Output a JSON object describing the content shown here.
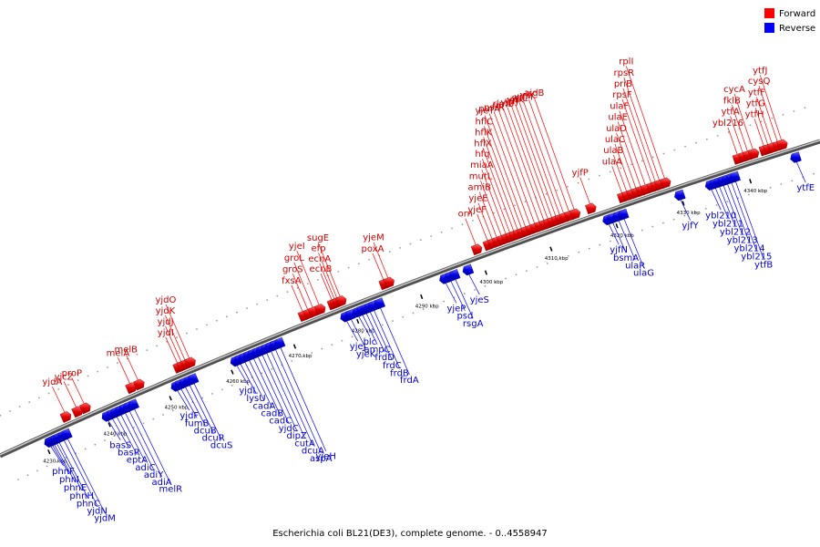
{
  "caption": "Escherichia coli BL21(DE3), complete genome. - 0..4558947",
  "legend": {
    "forward": "Forward",
    "reverse": "Reverse"
  },
  "colors": {
    "forward": "#ff0000",
    "reverse": "#0000ff",
    "backbone": "#808080",
    "forward_label": "#cc0000",
    "reverse_label": "#0000cc"
  },
  "ruler": [
    {
      "label": "4230 kbp",
      "pos": 4230
    },
    {
      "label": "4240 kbp",
      "pos": 4240
    },
    {
      "label": "4250 kbp",
      "pos": 4250
    },
    {
      "label": "4260 kbp",
      "pos": 4260
    },
    {
      "label": "4270 kbp",
      "pos": 4270
    },
    {
      "label": "4280 kbp",
      "pos": 4280
    },
    {
      "label": "4290 kbp",
      "pos": 4290
    },
    {
      "label": "4300 kbp",
      "pos": 4300
    },
    {
      "label": "4310 kbp",
      "pos": 4310
    },
    {
      "label": "4320 kbp",
      "pos": 4320
    },
    {
      "label": "4330 kbp",
      "pos": 4330
    },
    {
      "label": "4340 kbp",
      "pos": 4340
    }
  ],
  "genes": [
    {
      "name": "yjdA",
      "strand": "forward",
      "pos": 4234.6
    },
    {
      "name": "yjcZ",
      "strand": "forward",
      "pos": 4236.5
    },
    {
      "name": "proP",
      "strand": "forward",
      "pos": 4237.8
    },
    {
      "name": "melA",
      "strand": "forward",
      "pos": 4245.3
    },
    {
      "name": "melB",
      "strand": "forward",
      "pos": 4246.6
    },
    {
      "name": "yjdI",
      "strand": "forward",
      "pos": 4253.0
    },
    {
      "name": "yjdJ",
      "strand": "forward",
      "pos": 4253.6
    },
    {
      "name": "yjdK",
      "strand": "forward",
      "pos": 4254.2
    },
    {
      "name": "yjdO",
      "strand": "forward",
      "pos": 4254.9
    },
    {
      "name": "fxsA",
      "strand": "forward",
      "pos": 4273.0
    },
    {
      "name": "groS",
      "strand": "forward",
      "pos": 4273.8
    },
    {
      "name": "groL",
      "strand": "forward",
      "pos": 4274.6
    },
    {
      "name": "yjeI",
      "strand": "forward",
      "pos": 4275.6
    },
    {
      "name": "ecnB",
      "strand": "forward",
      "pos": 4277.6
    },
    {
      "name": "ecnA",
      "strand": "forward",
      "pos": 4278.0
    },
    {
      "name": "efp",
      "strand": "forward",
      "pos": 4278.4
    },
    {
      "name": "sugE",
      "strand": "forward",
      "pos": 4278.9
    },
    {
      "name": "poxA",
      "strand": "forward",
      "pos": 4285.7
    },
    {
      "name": "yjeM",
      "strand": "forward",
      "pos": 4286.4
    },
    {
      "name": "orn",
      "strand": "forward",
      "pos": 4300.0
    },
    {
      "name": "yjeF",
      "strand": "forward",
      "pos": 4301.8
    },
    {
      "name": "yjeE",
      "strand": "forward",
      "pos": 4302.5
    },
    {
      "name": "amiB",
      "strand": "forward",
      "pos": 4303.2
    },
    {
      "name": "mutL",
      "strand": "forward",
      "pos": 4303.9
    },
    {
      "name": "miaA",
      "strand": "forward",
      "pos": 4304.6
    },
    {
      "name": "hfq",
      "strand": "forward",
      "pos": 4305.2
    },
    {
      "name": "hflX",
      "strand": "forward",
      "pos": 4305.8
    },
    {
      "name": "hflK",
      "strand": "forward",
      "pos": 4306.4
    },
    {
      "name": "hflC",
      "strand": "forward",
      "pos": 4307.0
    },
    {
      "name": "yjeT",
      "strand": "forward",
      "pos": 4307.6
    },
    {
      "name": "purA",
      "strand": "forward",
      "pos": 4308.3
    },
    {
      "name": "nsrR",
      "strand": "forward",
      "pos": 4309.0
    },
    {
      "name": "rnr",
      "strand": "forward",
      "pos": 4309.7
    },
    {
      "name": "rlmB",
      "strand": "forward",
      "pos": 4310.4
    },
    {
      "name": "yjfI",
      "strand": "forward",
      "pos": 4311.0
    },
    {
      "name": "yjfJ",
      "strand": "forward",
      "pos": 4311.6
    },
    {
      "name": "yjfK",
      "strand": "forward",
      "pos": 4312.2
    },
    {
      "name": "yjfL",
      "strand": "forward",
      "pos": 4312.8
    },
    {
      "name": "yjfM",
      "strand": "forward",
      "pos": 4313.4
    },
    {
      "name": "yjfC",
      "strand": "forward",
      "pos": 4314.2
    },
    {
      "name": "aidB",
      "strand": "forward",
      "pos": 4315.0
    },
    {
      "name": "yjfP",
      "strand": "forward",
      "pos": 4317.4
    },
    {
      "name": "ulaA",
      "strand": "forward",
      "pos": 4322.2
    },
    {
      "name": "ulaB",
      "strand": "forward",
      "pos": 4322.9
    },
    {
      "name": "ulaC",
      "strand": "forward",
      "pos": 4323.6
    },
    {
      "name": "ulaD",
      "strand": "forward",
      "pos": 4324.3
    },
    {
      "name": "ulaE",
      "strand": "forward",
      "pos": 4325.0
    },
    {
      "name": "ulaF",
      "strand": "forward",
      "pos": 4325.7
    },
    {
      "name": "rpsF",
      "strand": "forward",
      "pos": 4326.6
    },
    {
      "name": "priB",
      "strand": "forward",
      "pos": 4327.2
    },
    {
      "name": "rpsR",
      "strand": "forward",
      "pos": 4327.8
    },
    {
      "name": "rplI",
      "strand": "forward",
      "pos": 4328.6
    },
    {
      "name": "ybl216",
      "strand": "forward",
      "pos": 4339.4
    },
    {
      "name": "ytfA",
      "strand": "forward",
      "pos": 4340.2
    },
    {
      "name": "fklB",
      "strand": "forward",
      "pos": 4340.9
    },
    {
      "name": "cycA",
      "strand": "forward",
      "pos": 4341.7
    },
    {
      "name": "ytfH",
      "strand": "forward",
      "pos": 4343.3
    },
    {
      "name": "ytfG",
      "strand": "forward",
      "pos": 4343.9
    },
    {
      "name": "ytfF",
      "strand": "forward",
      "pos": 4344.5
    },
    {
      "name": "cysQ",
      "strand": "forward",
      "pos": 4345.3
    },
    {
      "name": "ytfJ",
      "strand": "forward",
      "pos": 4345.9
    },
    {
      "name": "phnF",
      "strand": "reverse",
      "pos": 4230.6
    },
    {
      "name": "phnI",
      "strand": "reverse",
      "pos": 4230.9
    },
    {
      "name": "phnE",
      "strand": "reverse",
      "pos": 4231.2
    },
    {
      "name": "phnH",
      "strand": "reverse",
      "pos": 4231.6
    },
    {
      "name": "phnC",
      "strand": "reverse",
      "pos": 4232.0
    },
    {
      "name": "yjdN",
      "strand": "reverse",
      "pos": 4232.8
    },
    {
      "name": "yjdM",
      "strand": "reverse",
      "pos": 4233.4
    },
    {
      "name": "basS",
      "strand": "reverse",
      "pos": 4240.1
    },
    {
      "name": "basR",
      "strand": "reverse",
      "pos": 4240.8
    },
    {
      "name": "eptA",
      "strand": "reverse",
      "pos": 4241.5
    },
    {
      "name": "adiC",
      "strand": "reverse",
      "pos": 4242.2
    },
    {
      "name": "adiY",
      "strand": "reverse",
      "pos": 4242.9
    },
    {
      "name": "adiA",
      "strand": "reverse",
      "pos": 4243.6
    },
    {
      "name": "melR",
      "strand": "reverse",
      "pos": 4244.4
    },
    {
      "name": "yjdF",
      "strand": "reverse",
      "pos": 4251.4
    },
    {
      "name": "fumB",
      "strand": "reverse",
      "pos": 4252.0
    },
    {
      "name": "dcuB",
      "strand": "reverse",
      "pos": 4252.7
    },
    {
      "name": "dcuR",
      "strand": "reverse",
      "pos": 4253.4
    },
    {
      "name": "dcuS",
      "strand": "reverse",
      "pos": 4254.1
    },
    {
      "name": "yjdL",
      "strand": "reverse",
      "pos": 4261.0
    },
    {
      "name": "lysU",
      "strand": "reverse",
      "pos": 4261.6
    },
    {
      "name": "cadA",
      "strand": "reverse",
      "pos": 4262.3
    },
    {
      "name": "cadB",
      "strand": "reverse",
      "pos": 4263.0
    },
    {
      "name": "cadC",
      "strand": "reverse",
      "pos": 4263.7
    },
    {
      "name": "yjdC",
      "strand": "reverse",
      "pos": 4264.4
    },
    {
      "name": "dipZ",
      "strand": "reverse",
      "pos": 4265.1
    },
    {
      "name": "cutA",
      "strand": "reverse",
      "pos": 4265.8
    },
    {
      "name": "dcuA",
      "strand": "reverse",
      "pos": 4266.5
    },
    {
      "name": "aspA",
      "strand": "reverse",
      "pos": 4267.2
    },
    {
      "name": "yjeH",
      "strand": "reverse",
      "pos": 4268.0
    },
    {
      "name": "yjeJ",
      "strand": "reverse",
      "pos": 4278.5
    },
    {
      "name": "yjeK",
      "strand": "reverse",
      "pos": 4279.2
    },
    {
      "name": "blc",
      "strand": "reverse",
      "pos": 4280.4
    },
    {
      "name": "ampC",
      "strand": "reverse",
      "pos": 4281.0
    },
    {
      "name": "frdD",
      "strand": "reverse",
      "pos": 4281.6
    },
    {
      "name": "frdC",
      "strand": "reverse",
      "pos": 4282.2
    },
    {
      "name": "frdB",
      "strand": "reverse",
      "pos": 4282.8
    },
    {
      "name": "frdA",
      "strand": "reverse",
      "pos": 4283.8
    },
    {
      "name": "yjeP",
      "strand": "reverse",
      "pos": 4294.0
    },
    {
      "name": "psd",
      "strand": "reverse",
      "pos": 4294.8
    },
    {
      "name": "rsgA",
      "strand": "reverse",
      "pos": 4295.5
    },
    {
      "name": "yjeS",
      "strand": "reverse",
      "pos": 4297.6
    },
    {
      "name": "yjfN",
      "strand": "reverse",
      "pos": 4319.0
    },
    {
      "name": "bsmA",
      "strand": "reverse",
      "pos": 4319.6
    },
    {
      "name": "ulaR",
      "strand": "reverse",
      "pos": 4320.5
    },
    {
      "name": "ulaG",
      "strand": "reverse",
      "pos": 4321.3
    },
    {
      "name": "yjfY",
      "strand": "reverse",
      "pos": 4329.8
    },
    {
      "name": "ybl210",
      "strand": "reverse",
      "pos": 4334.4
    },
    {
      "name": "ybl211",
      "strand": "reverse",
      "pos": 4335.0
    },
    {
      "name": "ybl212",
      "strand": "reverse",
      "pos": 4335.6
    },
    {
      "name": "ybl213",
      "strand": "reverse",
      "pos": 4336.2
    },
    {
      "name": "ybl214",
      "strand": "reverse",
      "pos": 4336.8
    },
    {
      "name": "ybl215",
      "strand": "reverse",
      "pos": 4337.4
    },
    {
      "name": "ytfB",
      "strand": "reverse",
      "pos": 4338.0
    },
    {
      "name": "ytfE",
      "strand": "reverse",
      "pos": 4347.0
    }
  ]
}
